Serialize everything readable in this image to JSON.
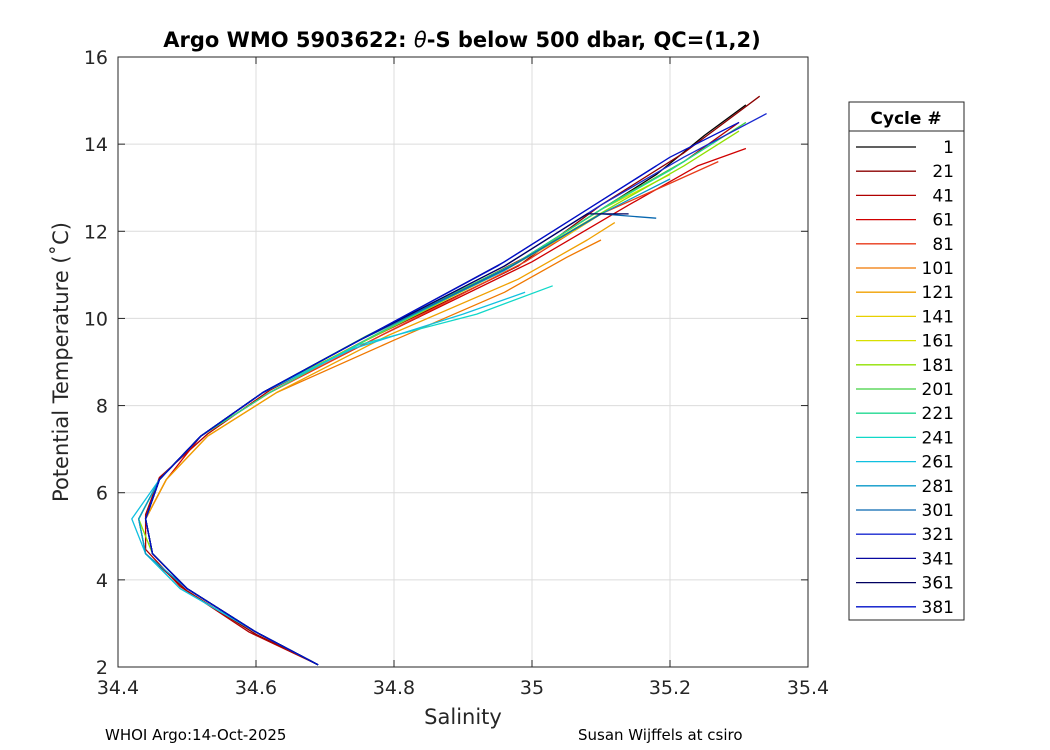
{
  "chart_data": {
    "type": "line",
    "title_prefix": "Argo WMO 5903622: ",
    "title_theta": "θ",
    "title_suffix": "-S below 500 dbar,  QC=(1,2)",
    "xlabel": "Salinity",
    "ylabel": "Potential Temperature (˚C)",
    "xlim": [
      34.4,
      35.4
    ],
    "ylim": [
      2,
      16
    ],
    "x_ticks": [
      34.4,
      34.6,
      34.8,
      35,
      35.2,
      35.4
    ],
    "x_tick_labels": [
      "34.4",
      "34.6",
      "34.8",
      "35",
      "35.2",
      "35.4"
    ],
    "y_ticks": [
      2,
      4,
      6,
      8,
      10,
      12,
      14,
      16
    ],
    "y_tick_labels": [
      "2",
      "4",
      "6",
      "8",
      "10",
      "12",
      "14",
      "16"
    ],
    "grid": true,
    "legend_title": "Cycle #",
    "legend_position": "right-outside",
    "series": [
      {
        "name": "1",
        "color": "#000000",
        "profile": [
          [
            34.69,
            2.05
          ],
          [
            34.6,
            2.8
          ],
          [
            34.5,
            3.8
          ],
          [
            34.45,
            4.6
          ],
          [
            34.44,
            5.4
          ],
          [
            34.46,
            6.3
          ],
          [
            34.52,
            7.3
          ],
          [
            34.61,
            8.3
          ],
          [
            34.75,
            9.5
          ],
          [
            34.97,
            11.2
          ],
          [
            35.1,
            12.5
          ],
          [
            35.18,
            13.3
          ],
          [
            35.25,
            14.2
          ],
          [
            35.31,
            14.9
          ]
        ]
      },
      {
        "name": "21",
        "color": "#8b0000",
        "profile": [
          [
            34.69,
            2.05
          ],
          [
            34.6,
            2.75
          ],
          [
            34.5,
            3.75
          ],
          [
            34.44,
            4.6
          ],
          [
            34.43,
            5.4
          ],
          [
            34.46,
            6.3
          ],
          [
            34.52,
            7.3
          ],
          [
            34.61,
            8.3
          ],
          [
            34.76,
            9.5
          ],
          [
            34.98,
            11.2
          ],
          [
            35.1,
            12.6
          ],
          [
            35.22,
            13.8
          ],
          [
            35.33,
            15.1
          ]
        ]
      },
      {
        "name": "41",
        "color": "#b00000",
        "profile": [
          [
            34.69,
            2.05
          ],
          [
            34.59,
            2.8
          ],
          [
            34.49,
            3.85
          ],
          [
            34.44,
            4.7
          ],
          [
            34.44,
            5.5
          ],
          [
            34.46,
            6.35
          ],
          [
            34.53,
            7.35
          ],
          [
            34.62,
            8.35
          ],
          [
            34.77,
            9.6
          ],
          [
            34.99,
            11.4
          ],
          [
            35.12,
            12.7
          ],
          [
            35.22,
            13.6
          ],
          [
            35.3,
            14.5
          ]
        ]
      },
      {
        "name": "61",
        "color": "#d00000",
        "profile": [
          [
            34.69,
            2.05
          ],
          [
            34.6,
            2.8
          ],
          [
            34.5,
            3.8
          ],
          [
            34.45,
            4.6
          ],
          [
            34.44,
            5.4
          ],
          [
            34.47,
            6.3
          ],
          [
            34.52,
            7.3
          ],
          [
            34.62,
            8.3
          ],
          [
            34.78,
            9.6
          ],
          [
            35.0,
            11.3
          ],
          [
            35.14,
            12.6
          ],
          [
            35.24,
            13.5
          ],
          [
            35.31,
            13.9
          ]
        ]
      },
      {
        "name": "81",
        "color": "#e83a1a",
        "profile": [
          [
            34.69,
            2.05
          ],
          [
            34.6,
            2.8
          ],
          [
            34.5,
            3.8
          ],
          [
            34.45,
            4.6
          ],
          [
            34.44,
            5.4
          ],
          [
            34.46,
            6.3
          ],
          [
            34.52,
            7.3
          ],
          [
            34.62,
            8.3
          ],
          [
            34.78,
            9.6
          ],
          [
            34.99,
            11.3
          ],
          [
            35.1,
            12.4
          ],
          [
            35.2,
            13.1
          ],
          [
            35.27,
            13.6
          ]
        ]
      },
      {
        "name": "101",
        "color": "#f07800",
        "profile": [
          [
            34.69,
            2.05
          ],
          [
            34.6,
            2.8
          ],
          [
            34.5,
            3.8
          ],
          [
            34.45,
            4.6
          ],
          [
            34.44,
            5.4
          ],
          [
            34.47,
            6.3
          ],
          [
            34.53,
            7.3
          ],
          [
            34.63,
            8.3
          ],
          [
            34.8,
            9.5
          ],
          [
            34.96,
            10.6
          ],
          [
            35.05,
            11.4
          ],
          [
            35.1,
            11.8
          ]
        ]
      },
      {
        "name": "121",
        "color": "#f0a000",
        "profile": [
          [
            34.69,
            2.05
          ],
          [
            34.6,
            2.8
          ],
          [
            34.5,
            3.8
          ],
          [
            34.45,
            4.6
          ],
          [
            34.44,
            5.4
          ],
          [
            34.47,
            6.3
          ],
          [
            34.53,
            7.3
          ],
          [
            34.63,
            8.3
          ],
          [
            34.79,
            9.6
          ],
          [
            34.98,
            10.9
          ],
          [
            35.08,
            11.8
          ],
          [
            35.12,
            12.2
          ]
        ]
      },
      {
        "name": "141",
        "color": "#e8d000",
        "profile": [
          [
            34.69,
            2.05
          ],
          [
            34.6,
            2.8
          ],
          [
            34.5,
            3.8
          ],
          [
            34.45,
            4.6
          ],
          [
            34.44,
            5.4
          ],
          [
            34.46,
            6.3
          ],
          [
            34.52,
            7.3
          ],
          [
            34.62,
            8.3
          ],
          [
            34.77,
            9.6
          ],
          [
            34.96,
            11.1
          ],
          [
            35.06,
            12.0
          ],
          [
            35.1,
            12.4
          ]
        ]
      },
      {
        "name": "161",
        "color": "#d8e000",
        "profile": [
          [
            34.69,
            2.05
          ],
          [
            34.6,
            2.8
          ],
          [
            34.5,
            3.8
          ],
          [
            34.45,
            4.6
          ],
          [
            34.44,
            5.4
          ],
          [
            34.46,
            6.3
          ],
          [
            34.52,
            7.3
          ],
          [
            34.61,
            8.3
          ],
          [
            34.76,
            9.5
          ],
          [
            34.97,
            11.2
          ],
          [
            35.1,
            12.5
          ],
          [
            35.2,
            13.3
          ]
        ]
      },
      {
        "name": "181",
        "color": "#90e000",
        "profile": [
          [
            34.69,
            2.05
          ],
          [
            34.6,
            2.8
          ],
          [
            34.5,
            3.8
          ],
          [
            34.45,
            4.6
          ],
          [
            34.43,
            5.4
          ],
          [
            34.46,
            6.3
          ],
          [
            34.52,
            7.3
          ],
          [
            34.61,
            8.3
          ],
          [
            34.76,
            9.5
          ],
          [
            34.98,
            11.3
          ],
          [
            35.12,
            12.6
          ],
          [
            35.22,
            13.5
          ],
          [
            35.3,
            14.3
          ]
        ]
      },
      {
        "name": "201",
        "color": "#40d040",
        "profile": [
          [
            34.69,
            2.05
          ],
          [
            34.6,
            2.8
          ],
          [
            34.5,
            3.8
          ],
          [
            34.45,
            4.6
          ],
          [
            34.44,
            5.4
          ],
          [
            34.46,
            6.3
          ],
          [
            34.52,
            7.3
          ],
          [
            34.61,
            8.3
          ],
          [
            34.76,
            9.6
          ],
          [
            34.98,
            11.3
          ],
          [
            35.12,
            12.7
          ],
          [
            35.22,
            13.6
          ],
          [
            35.31,
            14.5
          ]
        ]
      },
      {
        "name": "221",
        "color": "#20d890",
        "profile": [
          [
            34.69,
            2.05
          ],
          [
            34.6,
            2.8
          ],
          [
            34.5,
            3.8
          ],
          [
            34.45,
            4.6
          ],
          [
            34.44,
            5.4
          ],
          [
            34.46,
            6.3
          ],
          [
            34.52,
            7.3
          ],
          [
            34.62,
            8.3
          ],
          [
            34.77,
            9.6
          ],
          [
            34.98,
            11.3
          ],
          [
            35.1,
            12.5
          ],
          [
            35.2,
            13.4
          ],
          [
            35.27,
            14.1
          ]
        ]
      },
      {
        "name": "241",
        "color": "#10d8c8",
        "profile": [
          [
            34.69,
            2.05
          ],
          [
            34.6,
            2.8
          ],
          [
            34.49,
            3.8
          ],
          [
            34.44,
            4.6
          ],
          [
            34.43,
            5.4
          ],
          [
            34.46,
            6.3
          ],
          [
            34.52,
            7.3
          ],
          [
            34.61,
            8.3
          ],
          [
            34.75,
            9.4
          ],
          [
            34.92,
            10.1
          ],
          [
            35.03,
            10.75
          ]
        ]
      },
      {
        "name": "261",
        "color": "#10c0e0",
        "profile": [
          [
            34.69,
            2.05
          ],
          [
            34.6,
            2.8
          ],
          [
            34.49,
            3.8
          ],
          [
            34.44,
            4.6
          ],
          [
            34.42,
            5.4
          ],
          [
            34.46,
            6.3
          ],
          [
            34.52,
            7.3
          ],
          [
            34.61,
            8.3
          ],
          [
            34.74,
            9.3
          ],
          [
            34.9,
            10.1
          ],
          [
            34.99,
            10.6
          ]
        ]
      },
      {
        "name": "281",
        "color": "#0898c8",
        "profile": [
          [
            34.69,
            2.05
          ],
          [
            34.6,
            2.8
          ],
          [
            34.5,
            3.8
          ],
          [
            34.44,
            4.6
          ],
          [
            34.43,
            5.4
          ],
          [
            34.46,
            6.3
          ],
          [
            34.52,
            7.3
          ],
          [
            34.61,
            8.3
          ],
          [
            34.75,
            9.5
          ],
          [
            34.96,
            11.1
          ],
          [
            35.1,
            12.4
          ],
          [
            35.2,
            13.2
          ]
        ]
      },
      {
        "name": "301",
        "color": "#0868b0",
        "profile": [
          [
            34.69,
            2.05
          ],
          [
            34.6,
            2.8
          ],
          [
            34.5,
            3.8
          ],
          [
            34.45,
            4.6
          ],
          [
            34.44,
            5.4
          ],
          [
            34.46,
            6.3
          ],
          [
            34.52,
            7.3
          ],
          [
            34.61,
            8.3
          ],
          [
            34.75,
            9.5
          ],
          [
            34.97,
            11.2
          ],
          [
            35.1,
            12.4
          ],
          [
            35.18,
            12.3
          ]
        ]
      },
      {
        "name": "321",
        "color": "#1828d0",
        "profile": [
          [
            34.69,
            2.05
          ],
          [
            34.6,
            2.8
          ],
          [
            34.5,
            3.8
          ],
          [
            34.45,
            4.6
          ],
          [
            34.44,
            5.4
          ],
          [
            34.46,
            6.3
          ],
          [
            34.52,
            7.3
          ],
          [
            34.61,
            8.3
          ],
          [
            34.75,
            9.5
          ],
          [
            34.96,
            11.2
          ],
          [
            35.1,
            12.6
          ],
          [
            35.22,
            13.7
          ],
          [
            35.34,
            14.7
          ]
        ]
      },
      {
        "name": "341",
        "color": "#0808a0",
        "profile": [
          [
            34.69,
            2.05
          ],
          [
            34.6,
            2.8
          ],
          [
            34.5,
            3.8
          ],
          [
            34.45,
            4.6
          ],
          [
            34.44,
            5.4
          ],
          [
            34.46,
            6.3
          ],
          [
            34.52,
            7.3
          ],
          [
            34.61,
            8.3
          ],
          [
            34.75,
            9.5
          ],
          [
            34.96,
            11.3
          ],
          [
            35.08,
            12.5
          ],
          [
            35.18,
            13.5
          ]
        ]
      },
      {
        "name": "361",
        "color": "#000060",
        "profile": [
          [
            34.69,
            2.05
          ],
          [
            34.6,
            2.8
          ],
          [
            34.5,
            3.8
          ],
          [
            34.45,
            4.6
          ],
          [
            34.44,
            5.4
          ],
          [
            34.46,
            6.3
          ],
          [
            34.52,
            7.3
          ],
          [
            34.61,
            8.3
          ],
          [
            34.75,
            9.5
          ],
          [
            34.96,
            11.2
          ],
          [
            35.08,
            12.4
          ],
          [
            35.14,
            12.4
          ]
        ]
      },
      {
        "name": "381",
        "color": "#0010c8",
        "profile": [
          [
            34.69,
            2.05
          ],
          [
            34.6,
            2.8
          ],
          [
            34.5,
            3.8
          ],
          [
            34.45,
            4.6
          ],
          [
            34.44,
            5.4
          ],
          [
            34.46,
            6.3
          ],
          [
            34.52,
            7.3
          ],
          [
            34.61,
            8.3
          ],
          [
            34.75,
            9.5
          ],
          [
            34.95,
            11.2
          ],
          [
            35.08,
            12.5
          ],
          [
            35.2,
            13.7
          ],
          [
            35.3,
            14.5
          ]
        ]
      }
    ]
  },
  "footer": {
    "left": "WHOI Argo:14-Oct-2025",
    "right": "Susan Wijffels at csiro"
  }
}
